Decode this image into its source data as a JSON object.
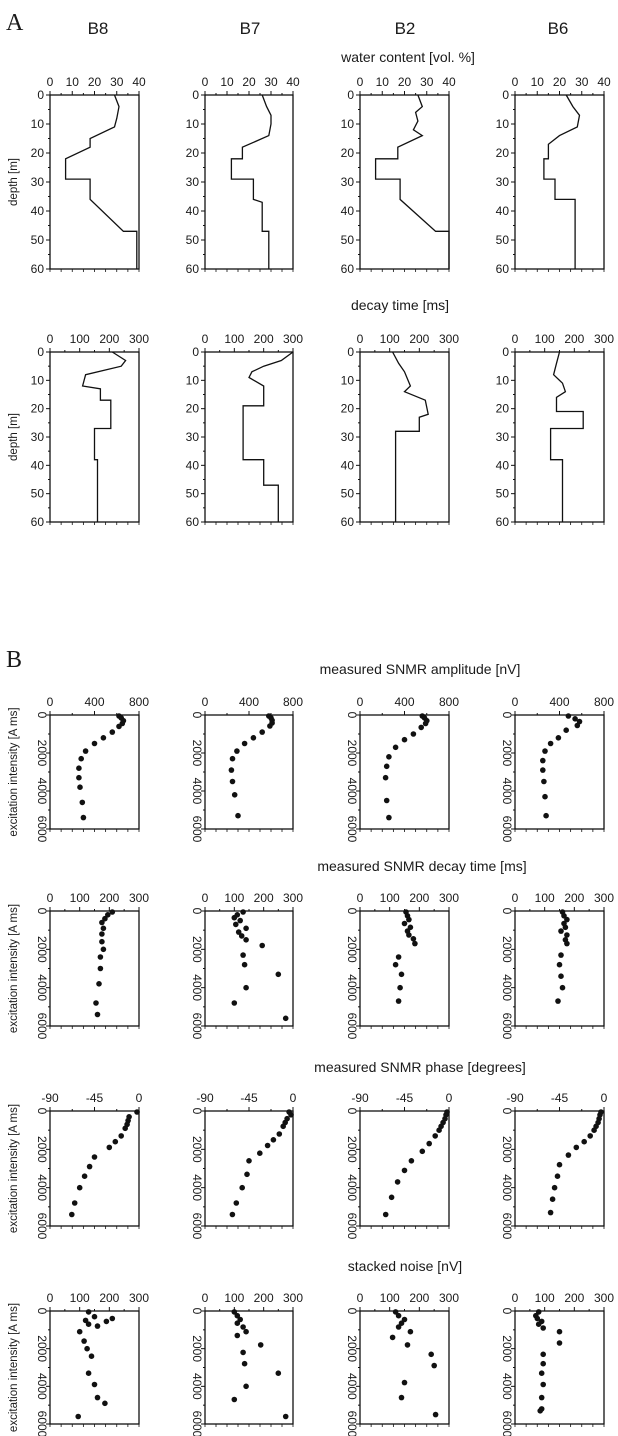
{
  "figure": {
    "panel_a_label": "A",
    "panel_b_label": "B",
    "columns": [
      "B8",
      "B7",
      "B2",
      "B6"
    ]
  },
  "chart_data": [
    {
      "type": "line",
      "title": "water content [vol. %]",
      "ylabel": "depth [m]",
      "xlim": [
        0,
        40
      ],
      "ylim": [
        0,
        60
      ],
      "xticks": [
        0,
        10,
        20,
        30,
        40
      ],
      "yticks": [
        0,
        10,
        20,
        30,
        40,
        50,
        60
      ],
      "y_inverted": true,
      "x_axis_position": "top",
      "series": [
        {
          "name": "B8",
          "x": [
            29,
            31,
            30,
            29,
            18,
            18,
            7,
            7,
            18,
            18,
            33,
            39,
            39
          ],
          "y": [
            0,
            4,
            8,
            11,
            15,
            18,
            22,
            29,
            29,
            36,
            47,
            47,
            60
          ]
        },
        {
          "name": "B7",
          "x": [
            26,
            28,
            30,
            30,
            29,
            17,
            17,
            12,
            12,
            22,
            22,
            26,
            26,
            29,
            29
          ],
          "y": [
            0,
            4,
            7,
            10,
            14,
            18,
            22,
            22,
            29,
            29,
            36,
            37,
            47,
            47,
            60
          ]
        },
        {
          "name": "B2",
          "x": [
            26,
            28,
            25,
            26,
            24,
            28,
            17,
            17,
            7,
            7,
            18,
            18,
            34,
            40,
            40
          ],
          "y": [
            0,
            4,
            6,
            9,
            12,
            14,
            18,
            22,
            22,
            29,
            29,
            36,
            47,
            47,
            60
          ]
        },
        {
          "name": "B6",
          "x": [
            23,
            26,
            29,
            28,
            20,
            15,
            15,
            13,
            13,
            18,
            18,
            27,
            27
          ],
          "y": [
            0,
            4,
            7,
            11,
            14,
            17,
            22,
            22,
            29,
            29,
            36,
            36,
            60
          ]
        }
      ]
    },
    {
      "type": "line",
      "title": "decay time [ms]",
      "ylabel": "depth [m]",
      "xlim": [
        0,
        300
      ],
      "ylim": [
        0,
        60
      ],
      "xticks": [
        0,
        100,
        200,
        300
      ],
      "yticks": [
        0,
        10,
        20,
        30,
        40,
        50,
        60
      ],
      "y_inverted": true,
      "x_axis_position": "top",
      "series": [
        {
          "name": "B8",
          "x": [
            210,
            255,
            240,
            120,
            110,
            170,
            170,
            205,
            205,
            150,
            150,
            160,
            160
          ],
          "y": [
            0,
            3,
            5,
            8,
            12,
            13,
            17,
            17,
            27,
            27,
            38,
            38,
            60
          ]
        },
        {
          "name": "B7",
          "x": [
            300,
            260,
            200,
            160,
            150,
            200,
            200,
            130,
            130,
            200,
            200,
            250,
            250
          ],
          "y": [
            0,
            3,
            5,
            7,
            9,
            12,
            19,
            19,
            38,
            38,
            47,
            47,
            60
          ]
        },
        {
          "name": "B2",
          "x": [
            110,
            130,
            150,
            170,
            150,
            220,
            230,
            200,
            200,
            120,
            120
          ],
          "y": [
            0,
            4,
            7,
            12,
            14,
            17,
            22,
            23,
            28,
            28,
            60
          ]
        },
        {
          "name": "B6",
          "x": [
            150,
            140,
            130,
            160,
            170,
            140,
            140,
            230,
            230,
            120,
            120,
            160,
            160
          ],
          "y": [
            0,
            4,
            8,
            11,
            14,
            16,
            21,
            21,
            27,
            27,
            38,
            38,
            60
          ]
        }
      ]
    },
    {
      "type": "scatter",
      "title": "measured SNMR amplitude [nV]",
      "ylabel": "excitation intensity [A ms]",
      "xlim": [
        0,
        800
      ],
      "ylim": [
        0,
        6000
      ],
      "xticks": [
        0,
        400,
        800
      ],
      "yticks": [
        0,
        2000,
        4000,
        6000
      ],
      "y_inverted": true,
      "x_axis_position": "top",
      "series": [
        {
          "name": "B8",
          "x": [
            620,
            640,
            660,
            650,
            620,
            560,
            480,
            400,
            320,
            280,
            260,
            260,
            270,
            290,
            300
          ],
          "y": [
            50,
            150,
            300,
            450,
            600,
            900,
            1200,
            1500,
            1900,
            2300,
            2800,
            3300,
            3800,
            4600,
            5400
          ]
        },
        {
          "name": "B7",
          "x": [
            580,
            600,
            610,
            610,
            590,
            520,
            440,
            360,
            290,
            250,
            240,
            250,
            270,
            300
          ],
          "y": [
            50,
            150,
            280,
            420,
            580,
            900,
            1200,
            1500,
            1900,
            2300,
            2900,
            3500,
            4200,
            5300
          ]
        },
        {
          "name": "B2",
          "x": [
            560,
            580,
            600,
            590,
            550,
            480,
            400,
            320,
            260,
            240,
            230,
            240,
            260
          ],
          "y": [
            50,
            150,
            300,
            450,
            650,
            1000,
            1300,
            1700,
            2200,
            2700,
            3300,
            4500,
            5400
          ]
        },
        {
          "name": "B6",
          "x": [
            480,
            540,
            580,
            560,
            460,
            390,
            320,
            270,
            250,
            250,
            260,
            270,
            280
          ],
          "y": [
            50,
            200,
            350,
            550,
            800,
            1200,
            1500,
            1900,
            2400,
            2900,
            3500,
            4300,
            5300
          ]
        }
      ]
    },
    {
      "type": "scatter",
      "title": "measured SNMR decay time [ms]",
      "ylabel": "excitation intensity [A ms]",
      "xlim": [
        0,
        300
      ],
      "ylim": [
        0,
        6000
      ],
      "xticks": [
        0,
        100,
        200,
        300
      ],
      "yticks": [
        0,
        2000,
        4000,
        6000
      ],
      "y_inverted": true,
      "x_axis_position": "top",
      "series": [
        {
          "name": "B8",
          "x": [
            210,
            195,
            185,
            175,
            180,
            175,
            175,
            180,
            170,
            170,
            165,
            155,
            160
          ],
          "y": [
            50,
            200,
            400,
            600,
            900,
            1200,
            1600,
            2000,
            2400,
            3000,
            3800,
            4800,
            5400
          ]
        },
        {
          "name": "B7",
          "x": [
            130,
            110,
            100,
            120,
            105,
            140,
            115,
            125,
            140,
            195,
            130,
            135,
            250,
            140,
            100,
            275
          ],
          "y": [
            50,
            200,
            350,
            500,
            700,
            900,
            1100,
            1300,
            1500,
            1800,
            2300,
            2800,
            3300,
            4000,
            4800,
            5600
          ]
        },
        {
          "name": "B2",
          "x": [
            155,
            160,
            165,
            150,
            170,
            160,
            165,
            180,
            185,
            130,
            120,
            140,
            135,
            130
          ],
          "y": [
            50,
            250,
            450,
            650,
            850,
            1050,
            1250,
            1450,
            1700,
            2400,
            2800,
            3300,
            4000,
            4700
          ]
        },
        {
          "name": "B6",
          "x": [
            160,
            165,
            175,
            165,
            170,
            155,
            175,
            170,
            175,
            155,
            150,
            155,
            160,
            145
          ],
          "y": [
            50,
            250,
            450,
            650,
            850,
            1050,
            1250,
            1500,
            1700,
            2300,
            2800,
            3400,
            4000,
            4700
          ]
        }
      ]
    },
    {
      "type": "scatter",
      "title": "measured SNMR phase [degrees]",
      "ylabel": "excitation intensity [A ms]",
      "xlim": [
        -90,
        0
      ],
      "ylim": [
        0,
        6000
      ],
      "xticks": [
        -90,
        -45,
        0
      ],
      "yticks": [
        0,
        2000,
        4000,
        6000
      ],
      "y_inverted": true,
      "x_axis_position": "top",
      "series": [
        {
          "name": "B8",
          "x": [
            -2,
            -10,
            -11,
            -12,
            -14,
            -18,
            -24,
            -30,
            -45,
            -50,
            -55,
            -60,
            -65,
            -68
          ],
          "y": [
            50,
            300,
            500,
            700,
            900,
            1300,
            1600,
            1900,
            2400,
            2900,
            3400,
            4000,
            4800,
            5400
          ]
        },
        {
          "name": "B7",
          "x": [
            -4,
            -2,
            -6,
            -8,
            -10,
            -14,
            -20,
            -26,
            -34,
            -45,
            -47,
            -52,
            -58,
            -62
          ],
          "y": [
            50,
            200,
            400,
            600,
            800,
            1200,
            1500,
            1800,
            2200,
            2600,
            3300,
            4000,
            4800,
            5400
          ]
        },
        {
          "name": "B2",
          "x": [
            -2,
            -3,
            -4,
            -6,
            -8,
            -10,
            -14,
            -20,
            -27,
            -38,
            -45,
            -52,
            -58,
            -64
          ],
          "y": [
            50,
            200,
            400,
            600,
            800,
            1000,
            1300,
            1700,
            2100,
            2600,
            3100,
            3700,
            4500,
            5400
          ]
        },
        {
          "name": "B6",
          "x": [
            -3,
            -4,
            -5,
            -6,
            -8,
            -10,
            -14,
            -20,
            -28,
            -36,
            -45,
            -47,
            -50,
            -52,
            -54
          ],
          "y": [
            50,
            200,
            400,
            600,
            800,
            1000,
            1300,
            1600,
            1900,
            2300,
            2800,
            3400,
            4000,
            4600,
            5300
          ]
        }
      ]
    },
    {
      "type": "scatter",
      "title": "stacked noise [nV]",
      "ylabel": "excitation intensity [A ms]",
      "xlim": [
        0,
        300
      ],
      "ylim": [
        0,
        6000
      ],
      "xticks": [
        0,
        100,
        200,
        300
      ],
      "yticks": [
        0,
        2000,
        4000,
        6000
      ],
      "y_inverted": true,
      "x_axis_position": "top",
      "series": [
        {
          "name": "B8",
          "x": [
            130,
            150,
            120,
            130,
            190,
            160,
            210,
            100,
            115,
            125,
            140,
            130,
            150,
            160,
            185,
            95
          ],
          "y": [
            50,
            300,
            500,
            700,
            550,
            800,
            400,
            1100,
            1600,
            2000,
            2400,
            3300,
            3900,
            4600,
            4900,
            5600
          ]
        },
        {
          "name": "B7",
          "x": [
            100,
            110,
            120,
            110,
            130,
            140,
            110,
            190,
            130,
            135,
            250,
            140,
            100,
            275
          ],
          "y": [
            50,
            250,
            450,
            650,
            850,
            1100,
            1300,
            1800,
            2200,
            2800,
            3300,
            4000,
            4700,
            5600
          ]
        },
        {
          "name": "B2",
          "x": [
            120,
            130,
            150,
            140,
            130,
            170,
            110,
            160,
            240,
            250,
            150,
            140,
            255
          ],
          "y": [
            50,
            250,
            450,
            650,
            850,
            1100,
            1400,
            1800,
            2300,
            2900,
            3800,
            4600,
            5500
          ]
        },
        {
          "name": "B6",
          "x": [
            80,
            70,
            75,
            90,
            80,
            95,
            150,
            150,
            95,
            95,
            90,
            95,
            90,
            90,
            85
          ],
          "y": [
            50,
            250,
            400,
            550,
            700,
            900,
            1100,
            1700,
            2300,
            2800,
            3300,
            3900,
            4600,
            5200,
            5300
          ]
        }
      ]
    }
  ]
}
